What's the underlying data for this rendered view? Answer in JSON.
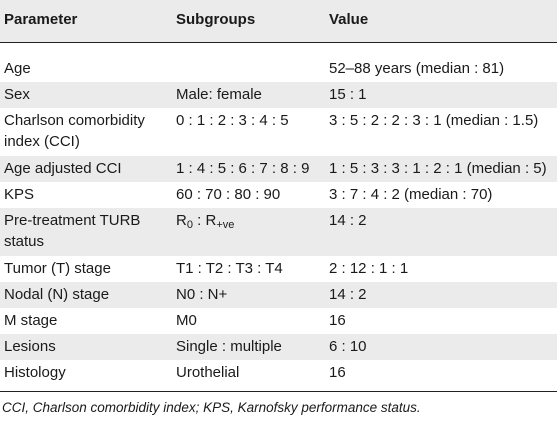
{
  "headers": {
    "parameter": "Parameter",
    "subgroups": "Subgroups",
    "value": "Value"
  },
  "rows": [
    {
      "parameter_l1": "Age",
      "parameter_l2": "",
      "subgroups": "",
      "value": "52–88 years (median : 81)"
    },
    {
      "parameter_l1": "Sex",
      "parameter_l2": "",
      "subgroups": "Male: female",
      "value": "15 : 1"
    },
    {
      "parameter_l1": "Charlson comorbidity",
      "parameter_l2": "index (CCI)",
      "subgroups": "0 : 1 : 2 : 3 : 4 : 5",
      "value": "3 : 5 : 2 : 2 : 3 : 1 (median : 1.5)"
    },
    {
      "parameter_l1": "Age adjusted CCI",
      "parameter_l2": "",
      "subgroups": "1 : 4 : 5 : 6 : 7 : 8 : 9",
      "value": "1 : 5 : 3 : 3 : 1 : 2 : 1 (median : 5)"
    },
    {
      "parameter_l1": "KPS",
      "parameter_l2": "",
      "subgroups": "60 : 70 : 80 : 90",
      "value": "3 : 7 : 4 : 2 (median : 70)"
    },
    {
      "parameter_l1": "Pre-treatment TURB",
      "parameter_l2": "status",
      "subgroups": "",
      "value": "14 : 2"
    },
    {
      "parameter_l1": "Tumor (T) stage",
      "parameter_l2": "",
      "subgroups": "T1 : T2 : T3 : T4",
      "value": "2 : 12 : 1 : 1"
    },
    {
      "parameter_l1": "Nodal (N) stage",
      "parameter_l2": "",
      "subgroups": "N0 : N+",
      "value": "14 : 2"
    },
    {
      "parameter_l1": "M stage",
      "parameter_l2": "",
      "subgroups": "M0",
      "value": "16"
    },
    {
      "parameter_l1": "Lesions",
      "parameter_l2": "",
      "subgroups": "Single : multiple",
      "value": "6 : 10"
    },
    {
      "parameter_l1": "Histology",
      "parameter_l2": "",
      "subgroups": "Urothelial",
      "value": "16"
    }
  ],
  "turb_subgroup": {
    "r0_base": "R",
    "r0_sub": "0",
    "separator": " : ",
    "rve_base": "R",
    "rve_sub": "+ve"
  },
  "footnote": "CCI, Charlson comorbidity index; KPS, Karnofsky performance status."
}
